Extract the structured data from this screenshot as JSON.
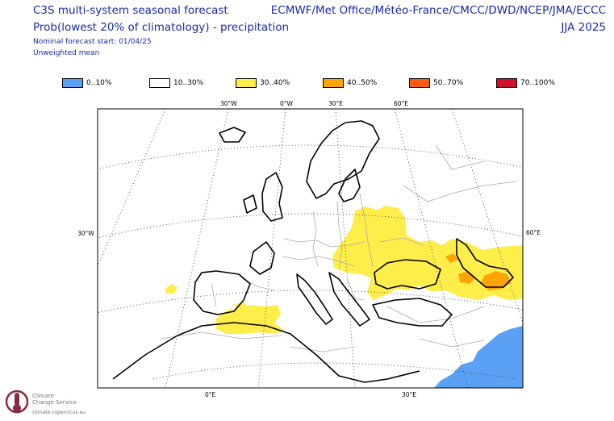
{
  "header": {
    "title_left": "C3S multi-system seasonal forecast",
    "subtitle_left": "Prob(lowest 20% of climatology) - precipitation",
    "nominal_start": "Nominal forecast start: 01/04/25",
    "weighting": "Unweighted mean",
    "title_right": "ECMWF/Met Office/Météo-France/CMCC/DWD/NCEP/JMA/ECCC",
    "season": "JJA 2025"
  },
  "legend": [
    {
      "label": "0..10%",
      "color": "#5aa0f5"
    },
    {
      "label": "10..30%",
      "color": "#ffffff"
    },
    {
      "label": "30..40%",
      "color": "#ffed4a"
    },
    {
      "label": "40..50%",
      "color": "#ffa500"
    },
    {
      "label": "50..70%",
      "color": "#ff5a10"
    },
    {
      "label": "70..100%",
      "color": "#d0102a"
    }
  ],
  "map": {
    "top_lon_labels": [
      "30°W",
      "0°W",
      "30°E",
      "60°E"
    ],
    "bottom_lon_labels": [
      "0°E",
      "30°E"
    ],
    "left_lat_label": "30°W",
    "right_lat_label": "60°E",
    "colors": {
      "land_border": "#aaaaaa",
      "coast": "#000000",
      "grid": "#444444",
      "low_precip_30_40": "#ffed4a",
      "low_precip_40_50": "#ffa500",
      "low_precip_0_10": "#5aa0f5"
    }
  },
  "logo": {
    "name_line1": "Climate",
    "name_line2": "Change Service",
    "url": "climate.copernicus.eu",
    "icon": "thermometer-icon"
  }
}
